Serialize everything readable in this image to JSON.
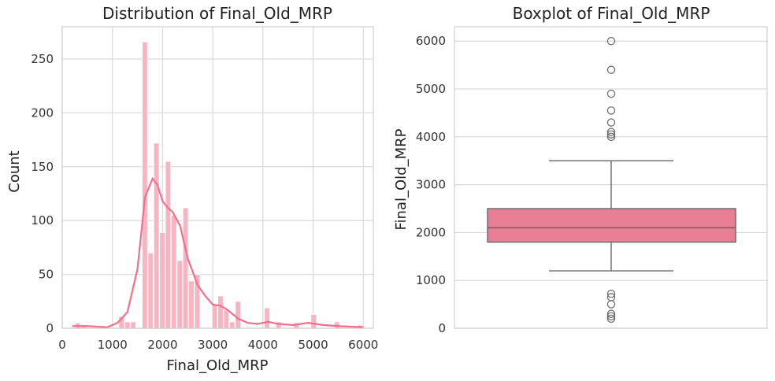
{
  "colors": {
    "background": "#ffffff",
    "grid": "#d9d9d9",
    "axis": "#cfcfcf",
    "histogram_bar": "#f7b4c1",
    "kde_line": "#f46f8c",
    "box_fill": "#e87f94",
    "box_line": "#666666",
    "text": "#222222"
  },
  "chart_data": [
    {
      "type": "bar",
      "title": "Distribution of Final_Old_MRP",
      "xlabel": "Final_Old_MRP",
      "ylabel": "Count",
      "xlim": [
        0,
        6200
      ],
      "ylim": [
        0,
        280
      ],
      "xticks": [
        0,
        1000,
        2000,
        3000,
        4000,
        5000,
        6000
      ],
      "yticks": [
        0,
        50,
        100,
        150,
        200,
        250
      ],
      "grid": true,
      "bin_width": 116,
      "series": [
        {
          "values": [
            {
              "x": 258,
              "y": 5
            },
            {
              "x": 374,
              "y": 2
            },
            {
              "x": 1128,
              "y": 11
            },
            {
              "x": 1244,
              "y": 6
            },
            {
              "x": 1360,
              "y": 6
            },
            {
              "x": 1592,
              "y": 266
            },
            {
              "x": 1708,
              "y": 70
            },
            {
              "x": 1824,
              "y": 172
            },
            {
              "x": 1940,
              "y": 89
            },
            {
              "x": 2056,
              "y": 155
            },
            {
              "x": 2172,
              "y": 105
            },
            {
              "x": 2288,
              "y": 63
            },
            {
              "x": 2404,
              "y": 112
            },
            {
              "x": 2520,
              "y": 44
            },
            {
              "x": 2636,
              "y": 50
            },
            {
              "x": 2984,
              "y": 22
            },
            {
              "x": 3100,
              "y": 30
            },
            {
              "x": 3216,
              "y": 17
            },
            {
              "x": 3332,
              "y": 6
            },
            {
              "x": 3448,
              "y": 25
            },
            {
              "x": 4028,
              "y": 19
            },
            {
              "x": 4260,
              "y": 6
            },
            {
              "x": 4608,
              "y": 5
            },
            {
              "x": 4956,
              "y": 13
            },
            {
              "x": 5420,
              "y": 6
            },
            {
              "x": 5884,
              "y": 3
            }
          ]
        },
        {
          "type": "line",
          "values": [
            {
              "x": 200,
              "y": 2
            },
            {
              "x": 500,
              "y": 2
            },
            {
              "x": 900,
              "y": 1
            },
            {
              "x": 1100,
              "y": 5
            },
            {
              "x": 1300,
              "y": 15
            },
            {
              "x": 1500,
              "y": 55
            },
            {
              "x": 1650,
              "y": 122
            },
            {
              "x": 1800,
              "y": 139
            },
            {
              "x": 1900,
              "y": 133
            },
            {
              "x": 2000,
              "y": 118
            },
            {
              "x": 2100,
              "y": 112
            },
            {
              "x": 2200,
              "y": 108
            },
            {
              "x": 2350,
              "y": 95
            },
            {
              "x": 2500,
              "y": 65
            },
            {
              "x": 2700,
              "y": 40
            },
            {
              "x": 2850,
              "y": 30
            },
            {
              "x": 3000,
              "y": 22
            },
            {
              "x": 3150,
              "y": 21
            },
            {
              "x": 3300,
              "y": 17
            },
            {
              "x": 3500,
              "y": 9
            },
            {
              "x": 3700,
              "y": 5
            },
            {
              "x": 3900,
              "y": 4
            },
            {
              "x": 4100,
              "y": 6
            },
            {
              "x": 4300,
              "y": 4
            },
            {
              "x": 4600,
              "y": 3
            },
            {
              "x": 4900,
              "y": 5
            },
            {
              "x": 5200,
              "y": 3
            },
            {
              "x": 5500,
              "y": 2
            },
            {
              "x": 6000,
              "y": 1
            }
          ]
        }
      ]
    },
    {
      "type": "box",
      "title": "Boxplot of Final_Old_MRP",
      "ylabel": "Final_Old_MRP",
      "ylim": [
        0,
        6300
      ],
      "yticks": [
        0,
        1000,
        2000,
        3000,
        4000,
        5000,
        6000
      ],
      "grid": true,
      "box": {
        "q1": 1800,
        "median": 2100,
        "q3": 2500,
        "whisker_low": 1200,
        "whisker_high": 3500,
        "outliers": [
          6000,
          5400,
          4900,
          4550,
          4300,
          4100,
          4050,
          4000,
          720,
          650,
          500,
          300,
          250,
          200
        ]
      }
    }
  ]
}
